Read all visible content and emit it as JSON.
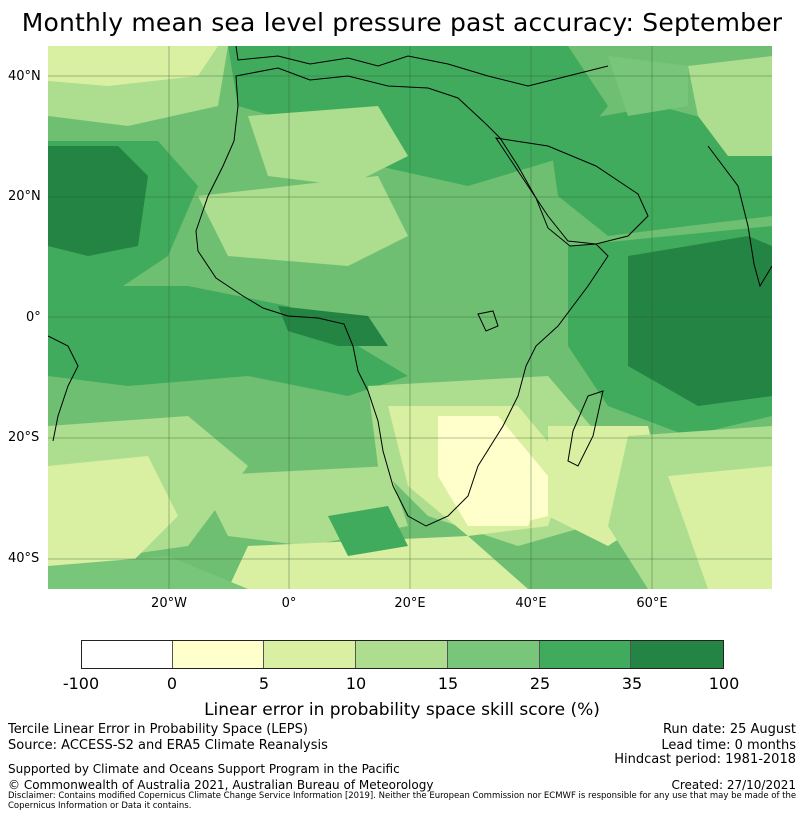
{
  "title": "Monthly mean sea level pressure past accuracy: September",
  "map": {
    "lat_ticks": [
      "40°N",
      "20°N",
      "0°",
      "20°S",
      "40°S"
    ],
    "lon_ticks": [
      "20°W",
      "0°",
      "20°E",
      "40°E",
      "60°E"
    ],
    "extent": {
      "lon": [
        -40,
        80
      ],
      "lat": [
        -45,
        45
      ]
    },
    "dominant_category": "15–25",
    "colors": {
      "ocean_base": "#6fbf72",
      "light": "#d9efa0",
      "lighter": "#ffffcc",
      "mid": "#a8db8a",
      "dark": "#41ab5d",
      "darkest": "#238443",
      "coast": "#000000"
    }
  },
  "colorbar": {
    "ticks": [
      "-100",
      "0",
      "5",
      "10",
      "15",
      "25",
      "35",
      "100"
    ],
    "segment_colors": [
      "#ffffff",
      "#ffffcc",
      "#d9f0a3",
      "#addd8e",
      "#78c679",
      "#41ab5d",
      "#238443"
    ],
    "label": "Linear error in probability space skill score (%)"
  },
  "footer": {
    "left": [
      "Tercile Linear Error in Probability Space (LEPS)",
      "Source: ACCESS-S2 and ERA5 Climate Reanalysis"
    ],
    "right": [
      "Run date: 25 August",
      "Lead time: 0 months",
      "Hindcast period: 1981-2018"
    ],
    "support": "Supported by Climate and Oceans Support Program in the Pacific",
    "copyright": "© Commonwealth of Australia 2021, Australian Bureau of Meteorology",
    "created": "Created: 27/10/2021",
    "disclaimer": "Disclaimer: Contains modified Copernicus Climate Change Service Information [2019]. Neither the European Commission nor ECMWF is responsible for any use that may be made of the Copernicus Information or Data it contains."
  }
}
